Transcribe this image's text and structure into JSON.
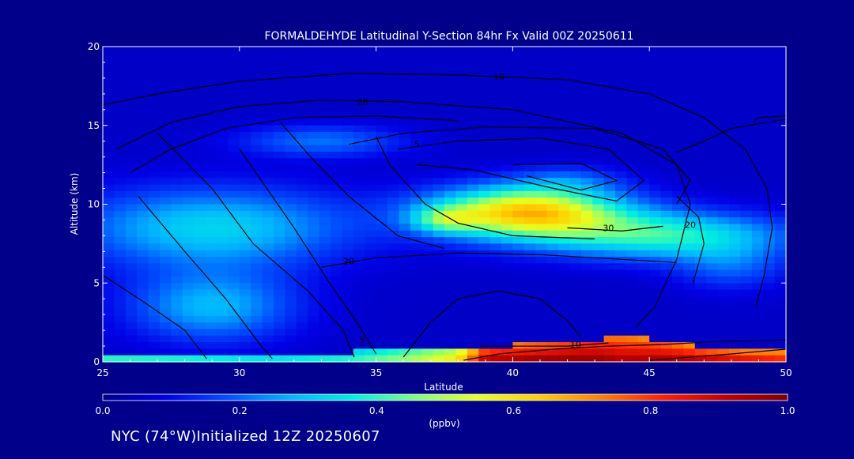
{
  "chart_data": {
    "type": "heatmap",
    "title": "FORMALDEHYDE Latitudinal Y-Section 84hr  Fx Valid 00Z 20250611",
    "xlabel": "Latitude",
    "ylabel": "Altitude (km)",
    "xlim": [
      25,
      50
    ],
    "ylim": [
      0,
      20
    ],
    "x_ticks": [
      "25",
      "30",
      "35",
      "40",
      "45",
      "50"
    ],
    "y_ticks": [
      "0",
      "5",
      "10",
      "15",
      "20"
    ],
    "colorbar": {
      "label": "(ppbv)",
      "range": [
        0,
        1
      ],
      "ticks": [
        "0.0",
        "0.2",
        "0.4",
        "0.6",
        "0.8",
        "1.0"
      ],
      "colors": [
        "#00008a",
        "#0000e6",
        "#0050ff",
        "#00b4ff",
        "#00f0e0",
        "#7cff80",
        "#e6ff20",
        "#ffd000",
        "#ff8000",
        "#ff2000",
        "#c00000",
        "#800000"
      ]
    },
    "field_blobs": [
      {
        "lat": 40.5,
        "alt": 9.5,
        "value": 0.58,
        "sx": 3.5,
        "sy": 1.6
      },
      {
        "lat": 37.5,
        "alt": 9.0,
        "value": 0.2,
        "sx": 1.2,
        "sy": 0.8
      },
      {
        "lat": 42.0,
        "alt": 11.5,
        "value": 0.1,
        "sx": 2.0,
        "sy": 0.9
      },
      {
        "lat": 45.5,
        "alt": 8.0,
        "value": 0.32,
        "sx": 4.5,
        "sy": 1.5
      },
      {
        "lat": 29.0,
        "alt": 8.5,
        "value": 0.26,
        "sx": 5.0,
        "sy": 2.5
      },
      {
        "lat": 29.0,
        "alt": 3.5,
        "value": 0.22,
        "sx": 3.0,
        "sy": 2.2
      },
      {
        "lat": 33.0,
        "alt": 14.0,
        "value": 0.15,
        "sx": 3.0,
        "sy": 1.0
      },
      {
        "lat": 48.0,
        "alt": 6.0,
        "value": 0.12,
        "sx": 2.0,
        "sy": 1.5
      }
    ],
    "surface_band": [
      {
        "lat": 25,
        "top": 0.4,
        "value": 0.45
      },
      {
        "lat": 28,
        "top": 0.5,
        "value": 0.42
      },
      {
        "lat": 31,
        "top": 0.5,
        "value": 0.38
      },
      {
        "lat": 34,
        "top": 0.6,
        "value": 0.42
      },
      {
        "lat": 36,
        "top": 0.8,
        "value": 0.5
      },
      {
        "lat": 38,
        "top": 0.9,
        "value": 0.62
      },
      {
        "lat": 39,
        "top": 1.0,
        "value": 0.95
      },
      {
        "lat": 41,
        "top": 1.1,
        "value": 1.0
      },
      {
        "lat": 43,
        "top": 1.4,
        "value": 1.0
      },
      {
        "lat": 44,
        "top": 1.7,
        "value": 0.95
      },
      {
        "lat": 45.5,
        "top": 1.3,
        "value": 0.97
      },
      {
        "lat": 47,
        "top": 0.9,
        "value": 0.95
      },
      {
        "lat": 48.5,
        "top": 0.8,
        "value": 0.9
      },
      {
        "lat": 50,
        "top": 1.0,
        "value": 0.85
      }
    ],
    "contours": [
      {
        "level": "10",
        "label_at": [
          39.5,
          17.9
        ],
        "points": [
          [
            25,
            16.3
          ],
          [
            27,
            17.0
          ],
          [
            30,
            17.8
          ],
          [
            34,
            18.3
          ],
          [
            38,
            18.2
          ],
          [
            42,
            17.9
          ],
          [
            45,
            17.0
          ],
          [
            47,
            15.5
          ],
          [
            48.5,
            13.5
          ],
          [
            49.3,
            11.0
          ],
          [
            49.5,
            8.5
          ],
          [
            49.2,
            5.5
          ],
          [
            48.9,
            3.5
          ]
        ]
      },
      {
        "level": "20",
        "label_at": [
          34.5,
          16.3
        ],
        "points": [
          [
            25.5,
            13.5
          ],
          [
            27.5,
            15.2
          ],
          [
            30,
            16.2
          ],
          [
            33,
            16.6
          ],
          [
            36,
            16.5
          ],
          [
            40,
            16.0
          ],
          [
            44,
            14.5
          ],
          [
            46,
            12.5
          ],
          [
            46.5,
            10.0
          ],
          [
            46.0,
            6.5
          ],
          [
            45.2,
            3.5
          ],
          [
            44.5,
            2.2
          ]
        ]
      },
      {
        "level": "20",
        "label_at": [
          46.5,
          8.5
        ],
        "points": [
          [
            46.0,
            10.5
          ],
          [
            46.8,
            9.2
          ],
          [
            47.0,
            7.5
          ],
          [
            46.6,
            5.0
          ]
        ]
      },
      {
        "level": "20",
        "label_at": [
          34.0,
          6.2
        ],
        "points": [
          [
            33.0,
            6.0
          ],
          [
            35.0,
            6.6
          ],
          [
            38.0,
            6.9
          ],
          [
            41.0,
            6.8
          ],
          [
            44.0,
            6.5
          ],
          [
            46.0,
            6.3
          ]
        ]
      },
      {
        "level": "30",
        "label_at": [
          43.5,
          8.3
        ],
        "points": [
          [
            42.0,
            8.5
          ],
          [
            44.0,
            8.3
          ],
          [
            45.5,
            8.6
          ]
        ]
      },
      {
        "level": "5",
        "label_at": [
          36.5,
          13.6
        ],
        "points": [
          [
            34,
            13.8
          ],
          [
            36,
            14.5
          ],
          [
            39,
            14.9
          ],
          [
            43,
            14.8
          ],
          [
            45.5,
            13.5
          ],
          [
            46.5,
            11.5
          ],
          [
            46.0,
            10.0
          ]
        ]
      },
      {
        "level": "",
        "label_at": null,
        "points": [
          [
            35.8,
            13.5
          ],
          [
            38,
            14.0
          ],
          [
            41,
            14.2
          ],
          [
            43.5,
            13.5
          ],
          [
            44.8,
            11.5
          ],
          [
            43.8,
            10.2
          ],
          [
            41.5,
            11.0
          ],
          [
            38.5,
            12.2
          ],
          [
            36.5,
            12.5
          ]
        ]
      },
      {
        "level": "",
        "label_at": null,
        "points": [
          [
            40.0,
            12.5
          ],
          [
            42.5,
            12.6
          ],
          [
            43.8,
            11.5
          ],
          [
            42.5,
            10.9
          ],
          [
            40.5,
            11.8
          ]
        ]
      },
      {
        "level": "",
        "label_at": null,
        "points": [
          [
            26.0,
            12.0
          ],
          [
            27.5,
            13.5
          ],
          [
            29.5,
            14.8
          ],
          [
            32.0,
            15.5
          ],
          [
            35.0,
            15.6
          ],
          [
            38.0,
            15.3
          ]
        ]
      },
      {
        "level": "",
        "label_at": null,
        "points": [
          [
            26.3,
            10.5
          ],
          [
            28.0,
            7.0
          ],
          [
            29.5,
            4.0
          ],
          [
            30.8,
            1.0
          ],
          [
            31.2,
            0.2
          ]
        ]
      },
      {
        "level": "",
        "label_at": null,
        "points": [
          [
            25.0,
            5.5
          ],
          [
            26.5,
            3.8
          ],
          [
            28.0,
            2.0
          ],
          [
            28.8,
            0.2
          ]
        ]
      },
      {
        "level": "",
        "label_at": null,
        "points": [
          [
            27.0,
            14.5
          ],
          [
            29.0,
            11.0
          ],
          [
            30.5,
            7.5
          ],
          [
            32.5,
            4.5
          ],
          [
            33.8,
            2.0
          ],
          [
            34.2,
            0.3
          ]
        ]
      },
      {
        "level": "5",
        "label_at": [
          34.5,
          1.2
        ],
        "points": [
          [
            30.0,
            13.5
          ],
          [
            31.0,
            11.0
          ],
          [
            32.0,
            8.5
          ],
          [
            33.3,
            5.0
          ],
          [
            34.3,
            2.5
          ],
          [
            35.0,
            0.5
          ]
        ]
      },
      {
        "level": "",
        "label_at": null,
        "points": [
          [
            31.5,
            15.2
          ],
          [
            32.6,
            13.0
          ],
          [
            34.0,
            10.5
          ],
          [
            35.8,
            8.0
          ],
          [
            37.5,
            7.2
          ]
        ]
      },
      {
        "level": "",
        "label_at": null,
        "points": [
          [
            35.0,
            14.3
          ],
          [
            35.5,
            12.5
          ],
          [
            36.8,
            10.0
          ],
          [
            38.0,
            8.8
          ],
          [
            40.0,
            8.0
          ],
          [
            43.0,
            7.8
          ]
        ]
      },
      {
        "level": "10",
        "label_at": [
          42.3,
          0.9
        ],
        "points": [
          [
            38.8,
            1.0
          ],
          [
            40.0,
            1.0
          ],
          [
            42.0,
            1.0
          ],
          [
            43.5,
            1.2
          ]
        ]
      },
      {
        "level": "",
        "label_at": null,
        "points": [
          [
            36.0,
            0.3
          ],
          [
            37.0,
            2.5
          ],
          [
            38.0,
            4.0
          ],
          [
            39.5,
            4.5
          ],
          [
            41.0,
            4.0
          ],
          [
            42.0,
            2.6
          ],
          [
            42.5,
            1.6
          ]
        ]
      },
      {
        "level": "",
        "label_at": null,
        "points": [
          [
            46.0,
            13.3
          ],
          [
            47.0,
            14.0
          ],
          [
            48.0,
            14.8
          ],
          [
            50.0,
            15.4
          ]
        ]
      },
      {
        "level": "",
        "label_at": null,
        "points": [
          [
            48.8,
            15.2
          ],
          [
            49.0,
            15.5
          ],
          [
            50.0,
            15.6
          ]
        ]
      },
      {
        "level": "",
        "label_at": null,
        "points": [
          [
            45.0,
            0.1
          ],
          [
            46.5,
            0.3
          ],
          [
            48.0,
            0.5
          ],
          [
            50.0,
            0.8
          ]
        ]
      },
      {
        "level": "",
        "label_at": null,
        "points": [
          [
            38.2,
            0.1
          ],
          [
            39.5,
            0.5
          ],
          [
            41.5,
            0.8
          ],
          [
            43.5,
            1.0
          ],
          [
            45.5,
            1.1
          ],
          [
            47.5,
            1.3
          ],
          [
            50.0,
            1.4
          ]
        ]
      }
    ]
  },
  "location_text": "NYC (74°W)Initialized 12Z 20250607"
}
